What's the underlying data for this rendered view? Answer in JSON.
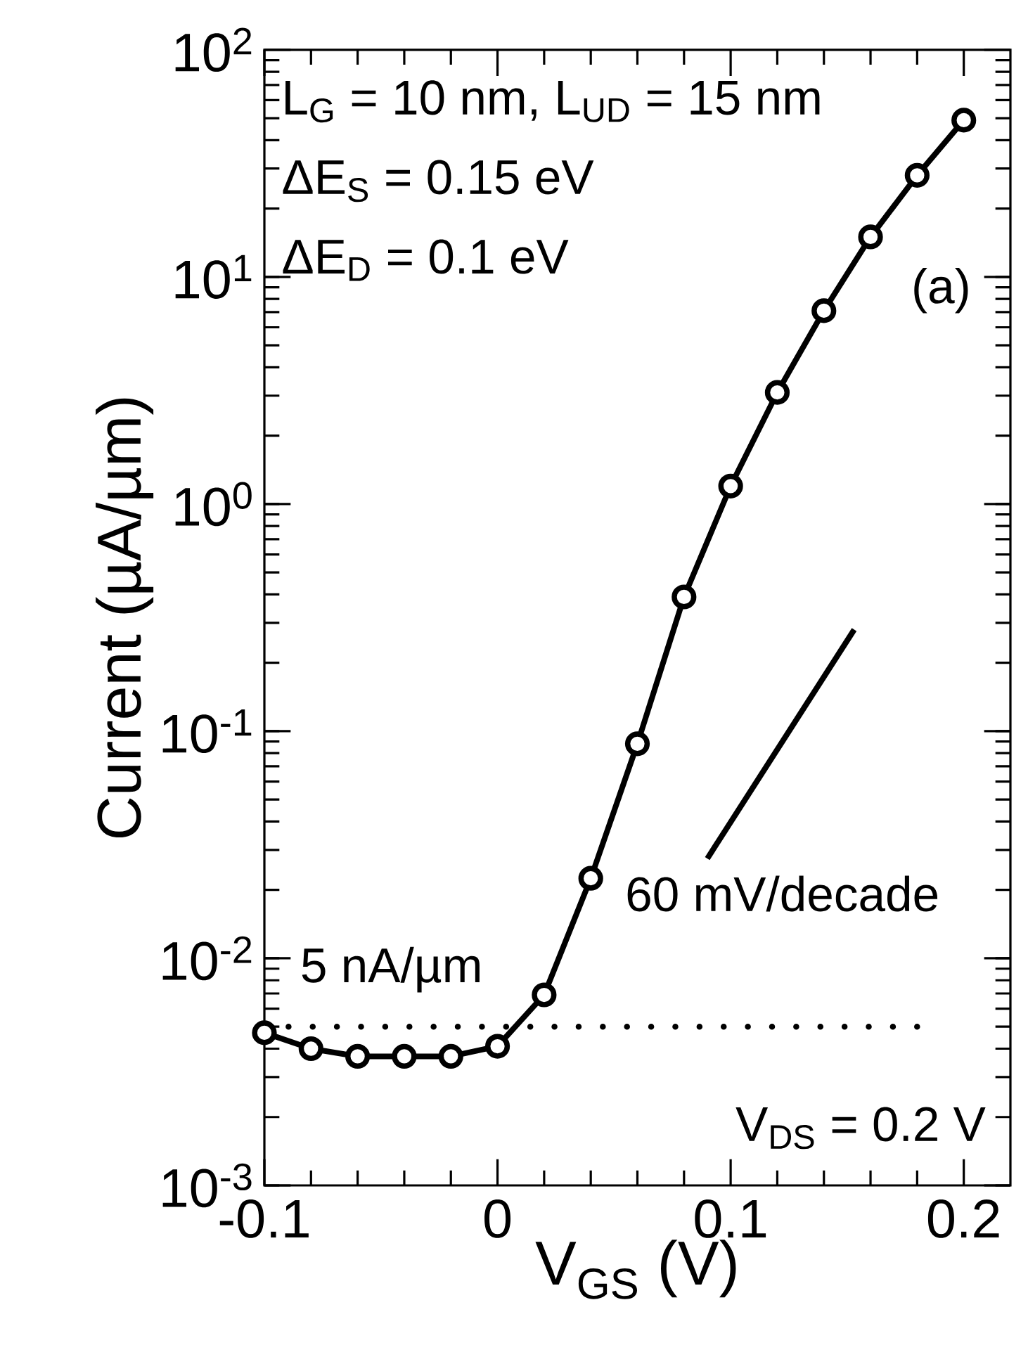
{
  "chart_data": {
    "type": "line",
    "xlabel": "V$_{GS}$ (V)",
    "ylabel": "Current (µA/µm)",
    "log": "y",
    "marker": "circle",
    "line_style": "solid",
    "grid": false,
    "legend": false,
    "xlim": [
      -0.1,
      0.22
    ],
    "xticks": [
      -0.1,
      0,
      0.1,
      0.2
    ],
    "ylim": [
      0.001,
      100
    ],
    "yticks": [
      {
        "value": 0.001,
        "label": "10$^{-3}$"
      },
      {
        "value": 0.01,
        "label": "10$^{-2}$"
      },
      {
        "value": 0.1,
        "label": "10$^{-1}$"
      },
      {
        "value": 1,
        "label": "10$^{0}$"
      },
      {
        "value": 10,
        "label": "10$^{1}$"
      },
      {
        "value": 100,
        "label": "10$^{2}$"
      }
    ],
    "series": [
      {
        "color": "#000000",
        "x": [
          -0.1,
          -0.08,
          -0.06,
          -0.04,
          -0.02,
          0,
          0.02,
          0.04,
          0.06,
          0.08,
          0.1,
          0.12,
          0.14,
          0.16,
          0.18,
          0.2
        ],
        "values": [
          0.0047,
          0.004,
          0.0037,
          0.0037,
          0.0037,
          0.0041,
          0.0069,
          0.0225,
          0.088,
          0.39,
          1.2,
          3.1,
          7.1,
          15,
          28,
          49
        ]
      },
      {
        "type": "line",
        "color": "#000000",
        "marker": "none",
        "x": [
          0.09,
          0.153
        ],
        "values": [
          0.0275,
          0.28
        ]
      },
      {
        "type": "line",
        "color": "#000000",
        "marker": "none",
        "line_style": "dotted",
        "x": [
          -0.1,
          0.18
        ],
        "values": [
          0.005,
          0.005
        ]
      }
    ],
    "annotations": [
      "L$_{G}$ = 10 nm, L$_{UD}$ = 15 nm",
      "ΔE$_{S}$ = 0.15 eV",
      "ΔE$_{D}$ = 0.1 eV",
      "(a)",
      {
        "text": "60 mV/decade",
        "x": 0.09,
        "y": 0.0275
      },
      "5 nA/µm",
      "V$_{DS}$ = 0.2 V"
    ]
  }
}
